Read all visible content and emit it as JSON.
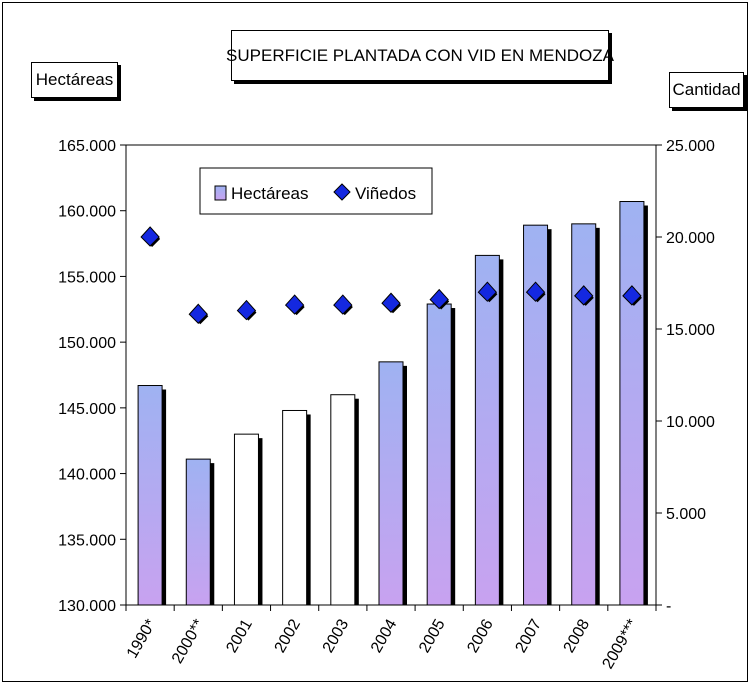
{
  "chart_data": {
    "type": "bar",
    "title": "SUPERFICIE PLANTADA CON VID EN MENDOZA",
    "ylabel_left": "Hectáreas",
    "ylabel_right": "Cantidad",
    "categories": [
      "1990*",
      "2000**",
      "2001",
      "2002",
      "2003",
      "2004",
      "2005",
      "2006",
      "2007",
      "2008",
      "2009***"
    ],
    "series": [
      {
        "name": "Hectáreas",
        "kind": "bar",
        "axis": "left",
        "values": [
          146700,
          141100,
          143000,
          144800,
          146000,
          148500,
          152900,
          156600,
          158900,
          159000,
          160700
        ],
        "filled": [
          true,
          true,
          false,
          false,
          false,
          true,
          true,
          true,
          true,
          true,
          true
        ]
      },
      {
        "name": "Viñedos",
        "kind": "scatter",
        "axis": "right",
        "values": [
          20000,
          15800,
          16000,
          16300,
          16300,
          16400,
          16600,
          17000,
          17000,
          16800,
          16800
        ]
      }
    ],
    "ylim_left": [
      130000,
      165000
    ],
    "ylim_right": [
      0,
      25000
    ],
    "yticks_left": [
      "130.000",
      "135.000",
      "140.000",
      "145.000",
      "150.000",
      "155.000",
      "160.000",
      "165.000"
    ],
    "yticks_right": [
      "-",
      "5.000",
      "10.000",
      "15.000",
      "20.000",
      "25.000"
    ],
    "legend": "inside-top-left",
    "grid": false,
    "colors": {
      "bar_top": "#9fb2f2",
      "bar_bottom": "#c8a2f0",
      "bar_empty": "#ffffff",
      "marker": "#1428e0",
      "shadow": "#000000"
    }
  }
}
